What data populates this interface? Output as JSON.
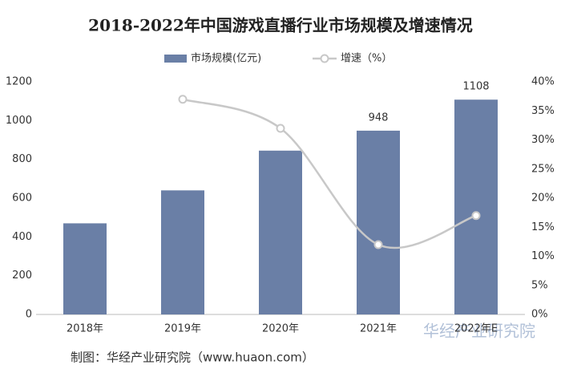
{
  "chart_data": {
    "type": "bar-line",
    "title": "2018-2022年中国游戏直播行业市场规模及增速情况",
    "categories": [
      "2018年",
      "2019年",
      "2020年",
      "2021年",
      "2022年E"
    ],
    "series": [
      {
        "name": "市场规模(亿元)",
        "color": "#6a7fa6",
        "type": "bar",
        "values": [
          470,
          640,
          845,
          948,
          1108
        ],
        "value_labels": [
          null,
          null,
          null,
          "948",
          "1108"
        ]
      },
      {
        "name": "增速（%）",
        "color": "#c8c8c8",
        "type": "line",
        "axis": "y2",
        "values": [
          null,
          37,
          32,
          12,
          17
        ]
      }
    ],
    "ylim": [
      0,
      1200
    ],
    "yticks": [
      0,
      200,
      400,
      600,
      800,
      1000,
      1200
    ],
    "y2lim": [
      0,
      40
    ],
    "y2ticks": [
      {
        "value": 0,
        "label": "0%"
      },
      {
        "value": 5,
        "label": "5%"
      },
      {
        "value": 10,
        "label": "10%"
      },
      {
        "value": 15,
        "label": "15%"
      },
      {
        "value": 20,
        "label": "20%"
      },
      {
        "value": 25,
        "label": "25%"
      },
      {
        "value": 30,
        "label": "30%"
      },
      {
        "value": 35,
        "label": "35%"
      },
      {
        "value": 40,
        "label": "40%"
      }
    ],
    "source": "制图：华经产业研究院（www.huaon.com）",
    "watermark": "华经产业研究院"
  }
}
